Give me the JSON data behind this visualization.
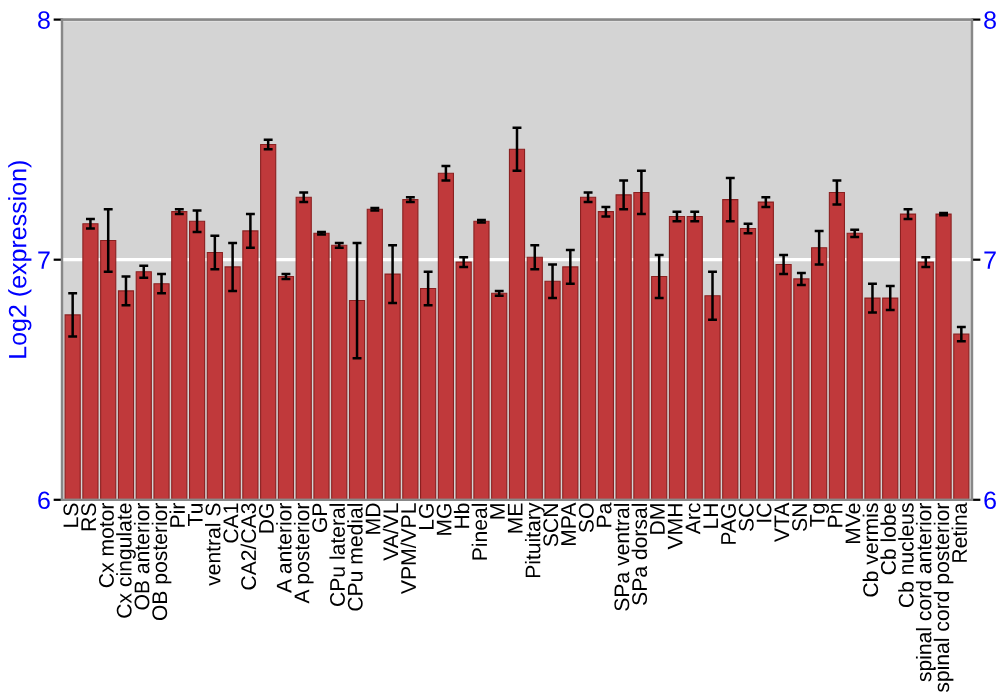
{
  "chart_data": {
    "type": "bar",
    "ylabel": "Log2 (expression)",
    "categories": [
      "LS",
      "RS",
      "Cx motor",
      "Cx cingulate",
      "OB anterior",
      "OB posterior",
      "Pir",
      "Tu",
      "ventral S",
      "CA1",
      "CA2/CA3",
      "DG",
      "A anterior",
      "A posterior",
      "GP",
      "CPu lateral",
      "CPu medial",
      "MD",
      "VA/VL",
      "VPM/VPL",
      "LG",
      "MG",
      "Hb",
      "Pineal",
      "M",
      "ME",
      "Pituitary",
      "SCN",
      "MPA",
      "SO",
      "Pa",
      "SPa ventral",
      "SPa dorsal",
      "DM",
      "VMH",
      "Arc",
      "LH",
      "PAG",
      "SC",
      "IC",
      "VTA",
      "SN",
      "Tg",
      "Pn",
      "MVe",
      "Cb vermis",
      "Cb lobe",
      "Cb nucleus",
      "spinal cord anterior",
      "spinal cord posterior",
      "Retina"
    ],
    "values": [
      6.77,
      7.15,
      7.08,
      6.87,
      6.95,
      6.9,
      7.2,
      7.16,
      7.03,
      6.97,
      7.12,
      7.48,
      6.93,
      7.26,
      7.11,
      7.06,
      6.83,
      7.21,
      6.94,
      7.25,
      6.88,
      7.36,
      6.99,
      7.16,
      6.86,
      7.46,
      7.01,
      6.91,
      6.97,
      7.26,
      7.2,
      7.27,
      7.28,
      6.93,
      7.18,
      7.18,
      6.85,
      7.25,
      7.13,
      7.24,
      6.98,
      6.92,
      7.05,
      7.28,
      7.11,
      6.84,
      6.84,
      7.19,
      6.99,
      7.19,
      6.69
    ],
    "errors": [
      0.09,
      0.02,
      0.13,
      0.06,
      0.025,
      0.04,
      0.01,
      0.045,
      0.07,
      0.1,
      0.07,
      0.02,
      0.01,
      0.02,
      0.005,
      0.01,
      0.24,
      0.005,
      0.12,
      0.01,
      0.07,
      0.03,
      0.02,
      0.005,
      0.01,
      0.09,
      0.05,
      0.07,
      0.07,
      0.02,
      0.02,
      0.06,
      0.09,
      0.09,
      0.02,
      0.02,
      0.1,
      0.09,
      0.02,
      0.02,
      0.04,
      0.025,
      0.07,
      0.05,
      0.015,
      0.06,
      0.05,
      0.02,
      0.02,
      0.005,
      0.03
    ],
    "color": "#c0393b",
    "ylim": [
      6,
      8
    ],
    "yticks": [
      6,
      7,
      8
    ],
    "y2lim": [
      6,
      8
    ],
    "y2ticks": [
      6,
      7,
      8
    ],
    "grid": "y"
  }
}
